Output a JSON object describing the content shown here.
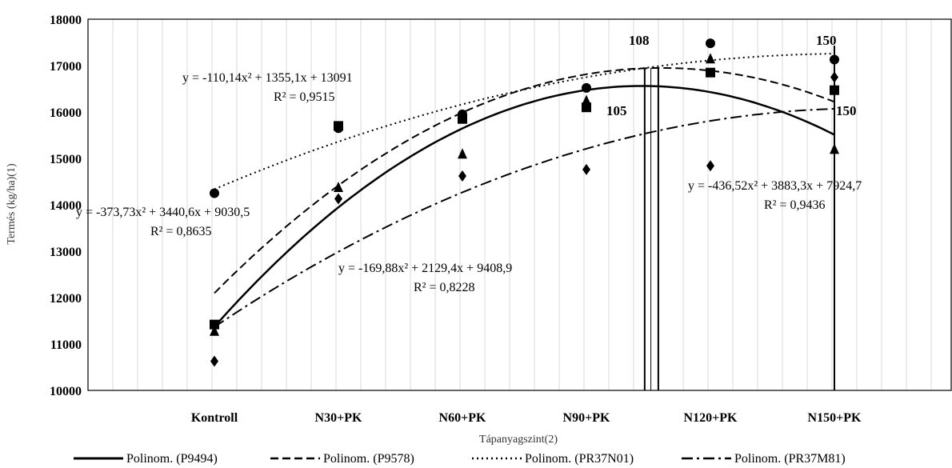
{
  "chart_data": {
    "type": "scatter",
    "categories": [
      "Kontroll",
      "N30+PK",
      "N60+PK",
      "N90+PK",
      "N120+PK",
      "N150+PK"
    ],
    "xlabel": "Tápanyagszint(2)",
    "ylabel": "Termés (kg/ha)(1)",
    "ylim": [
      10000,
      18000
    ],
    "yticks": [
      "10000",
      "11000",
      "12000",
      "13000",
      "14000",
      "15000",
      "16000",
      "17000",
      "18000"
    ],
    "grid": "vertical",
    "legend_position": "bottom",
    "series": [
      {
        "name": "Polinom. (P9494)",
        "marker": "triangle",
        "dash": "solid",
        "values": [
          11280,
          14380,
          15100,
          16250,
          17150,
          15200
        ],
        "coef": [
          -436.52,
          3883.3,
          7924.7
        ]
      },
      {
        "name": "Polinom. (P9578)",
        "marker": "square",
        "dash": "dashed",
        "values": [
          11420,
          15700,
          15850,
          16100,
          16850,
          16470
        ],
        "coef": [
          -373.73,
          3440.6,
          9030.5
        ]
      },
      {
        "name": "Polinom. (PR37N01)",
        "marker": "circle",
        "dash": "dotted",
        "values": [
          14250,
          15650,
          15950,
          16520,
          17480,
          17130
        ],
        "coef": [
          -110.14,
          1355.1,
          13091
        ]
      },
      {
        "name": "Polinom. (PR37M81)",
        "marker": "diamond",
        "dash": "dashdot",
        "values": [
          10630,
          14130,
          14620,
          14760,
          14840,
          16750
        ],
        "coef": [
          -169.88,
          2129.4,
          9408.9
        ]
      }
    ],
    "annotations": [
      {
        "text": "y = -110,14x² + 1355,1x + 13091",
        "r2": "R² = 0,9515"
      },
      {
        "text": "y = -373,73x² + 3440,6x + 9030,5",
        "r2": "R² = 0,8635"
      },
      {
        "text": "y = -169,88x² + 2129,4x + 9408,9",
        "r2": "R² = 0,8228"
      },
      {
        "text": "y = -436,52x² + 3883,3x + 7924,7",
        "r2": "R² = 0,9436"
      }
    ],
    "marker_lines": [
      {
        "label": "108",
        "x": 4.6
      },
      {
        "label": "105",
        "x": 4.5
      },
      {
        "label": "150",
        "x": 6.0
      },
      {
        "label": "150",
        "x": 6.0
      }
    ]
  }
}
